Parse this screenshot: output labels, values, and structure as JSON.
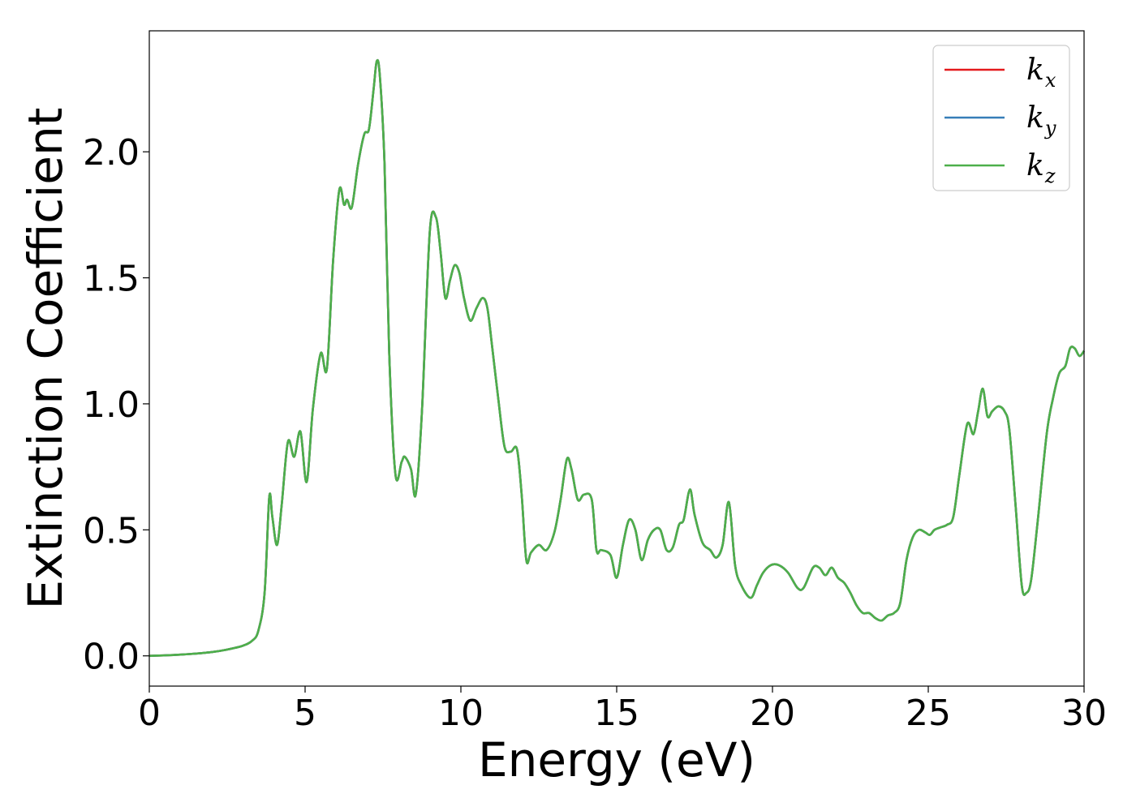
{
  "chart_data": {
    "type": "line",
    "title": "",
    "xlabel": "Energy (eV)",
    "ylabel": "Extinction Coefficient",
    "xlim": [
      0,
      30
    ],
    "ylim": [
      -0.12,
      2.48
    ],
    "xticks": [
      0,
      5,
      10,
      15,
      20,
      25,
      30
    ],
    "xtick_labels": [
      "0",
      "5",
      "10",
      "15",
      "20",
      "25",
      "30"
    ],
    "yticks": [
      0.0,
      0.5,
      1.0,
      1.5,
      2.0
    ],
    "ytick_labels": [
      "0.0",
      "0.5",
      "1.0",
      "1.5",
      "2.0"
    ],
    "grid": false,
    "legend_position": "top-right",
    "x": [
      0,
      1,
      2,
      2.5,
      3,
      3.3,
      3.5,
      3.7,
      3.85,
      3.95,
      4.1,
      4.25,
      4.45,
      4.65,
      4.85,
      5.05,
      5.25,
      5.5,
      5.7,
      5.9,
      6.1,
      6.25,
      6.35,
      6.5,
      6.7,
      6.9,
      7.05,
      7.2,
      7.3,
      7.4,
      7.55,
      7.7,
      7.9,
      8.1,
      8.2,
      8.4,
      8.55,
      8.75,
      9.0,
      9.2,
      9.35,
      9.5,
      9.65,
      9.8,
      9.95,
      10.1,
      10.3,
      10.5,
      10.7,
      10.85,
      11.0,
      11.2,
      11.4,
      11.6,
      11.8,
      11.95,
      12.1,
      12.25,
      12.5,
      12.75,
      13.0,
      13.2,
      13.4,
      13.55,
      13.75,
      13.95,
      14.2,
      14.35,
      14.5,
      14.8,
      15.0,
      15.2,
      15.4,
      15.6,
      15.8,
      16.0,
      16.2,
      16.4,
      16.6,
      16.8,
      17.0,
      17.15,
      17.35,
      17.5,
      17.75,
      18.0,
      18.2,
      18.4,
      18.6,
      18.8,
      19.0,
      19.3,
      19.5,
      19.7,
      19.95,
      20.2,
      20.5,
      20.8,
      21.0,
      21.3,
      21.5,
      21.7,
      21.9,
      22.1,
      22.3,
      22.5,
      22.7,
      22.9,
      23.1,
      23.3,
      23.5,
      23.7,
      23.9,
      24.1,
      24.3,
      24.5,
      24.7,
      24.9,
      25.05,
      25.2,
      25.4,
      25.6,
      25.8,
      26.0,
      26.25,
      26.45,
      26.6,
      26.75,
      26.9,
      27.05,
      27.25,
      27.45,
      27.6,
      27.8,
      28.0,
      28.15,
      28.3,
      28.5,
      28.8,
      29.0,
      29.2,
      29.4,
      29.55,
      29.7,
      29.85,
      30.0
    ],
    "series": [
      {
        "name": "k_x",
        "color": "#e41a1c",
        "values": [
          0.0,
          0.005,
          0.015,
          0.025,
          0.04,
          0.06,
          0.1,
          0.25,
          0.63,
          0.55,
          0.44,
          0.6,
          0.85,
          0.79,
          0.89,
          0.69,
          0.98,
          1.2,
          1.14,
          1.57,
          1.85,
          1.79,
          1.81,
          1.78,
          1.95,
          2.07,
          2.09,
          2.25,
          2.36,
          2.3,
          1.95,
          1.2,
          0.72,
          0.77,
          0.79,
          0.74,
          0.64,
          0.97,
          1.68,
          1.74,
          1.6,
          1.42,
          1.49,
          1.55,
          1.52,
          1.42,
          1.33,
          1.38,
          1.42,
          1.38,
          1.23,
          1.02,
          0.83,
          0.81,
          0.82,
          0.64,
          0.38,
          0.41,
          0.44,
          0.42,
          0.49,
          0.62,
          0.78,
          0.74,
          0.62,
          0.64,
          0.62,
          0.42,
          0.42,
          0.4,
          0.31,
          0.44,
          0.54,
          0.5,
          0.38,
          0.46,
          0.5,
          0.5,
          0.42,
          0.43,
          0.52,
          0.54,
          0.66,
          0.56,
          0.45,
          0.42,
          0.39,
          0.44,
          0.61,
          0.36,
          0.28,
          0.23,
          0.28,
          0.33,
          0.36,
          0.36,
          0.33,
          0.27,
          0.27,
          0.35,
          0.35,
          0.32,
          0.35,
          0.31,
          0.29,
          0.25,
          0.2,
          0.17,
          0.17,
          0.15,
          0.14,
          0.16,
          0.17,
          0.21,
          0.38,
          0.47,
          0.5,
          0.49,
          0.48,
          0.5,
          0.51,
          0.52,
          0.55,
          0.72,
          0.92,
          0.88,
          0.97,
          1.06,
          0.95,
          0.97,
          0.99,
          0.97,
          0.9,
          0.6,
          0.28,
          0.25,
          0.3,
          0.52,
          0.88,
          1.02,
          1.12,
          1.15,
          1.22,
          1.22,
          1.19,
          1.21
        ]
      },
      {
        "name": "k_y",
        "color": "#377eb8",
        "values": [
          0.0,
          0.005,
          0.015,
          0.025,
          0.04,
          0.06,
          0.1,
          0.25,
          0.63,
          0.55,
          0.44,
          0.6,
          0.85,
          0.79,
          0.89,
          0.69,
          0.98,
          1.2,
          1.14,
          1.57,
          1.85,
          1.79,
          1.81,
          1.78,
          1.95,
          2.07,
          2.09,
          2.25,
          2.36,
          2.3,
          1.95,
          1.2,
          0.72,
          0.77,
          0.79,
          0.74,
          0.64,
          0.97,
          1.68,
          1.74,
          1.6,
          1.42,
          1.49,
          1.55,
          1.52,
          1.42,
          1.33,
          1.38,
          1.42,
          1.38,
          1.23,
          1.02,
          0.83,
          0.81,
          0.82,
          0.64,
          0.38,
          0.41,
          0.44,
          0.42,
          0.49,
          0.62,
          0.78,
          0.74,
          0.62,
          0.64,
          0.62,
          0.42,
          0.42,
          0.4,
          0.31,
          0.44,
          0.54,
          0.5,
          0.38,
          0.46,
          0.5,
          0.5,
          0.42,
          0.43,
          0.52,
          0.54,
          0.66,
          0.56,
          0.45,
          0.42,
          0.39,
          0.44,
          0.61,
          0.36,
          0.28,
          0.23,
          0.28,
          0.33,
          0.36,
          0.36,
          0.33,
          0.27,
          0.27,
          0.35,
          0.35,
          0.32,
          0.35,
          0.31,
          0.29,
          0.25,
          0.2,
          0.17,
          0.17,
          0.15,
          0.14,
          0.16,
          0.17,
          0.21,
          0.38,
          0.47,
          0.5,
          0.49,
          0.48,
          0.5,
          0.51,
          0.52,
          0.55,
          0.72,
          0.92,
          0.88,
          0.97,
          1.06,
          0.95,
          0.97,
          0.99,
          0.97,
          0.9,
          0.6,
          0.28,
          0.25,
          0.3,
          0.52,
          0.88,
          1.02,
          1.12,
          1.15,
          1.22,
          1.22,
          1.19,
          1.21
        ]
      },
      {
        "name": "k_z",
        "color": "#4daf4a",
        "values": [
          0.0,
          0.005,
          0.015,
          0.025,
          0.04,
          0.06,
          0.1,
          0.25,
          0.63,
          0.55,
          0.44,
          0.6,
          0.85,
          0.79,
          0.89,
          0.69,
          0.98,
          1.2,
          1.14,
          1.57,
          1.85,
          1.79,
          1.81,
          1.78,
          1.95,
          2.07,
          2.09,
          2.25,
          2.36,
          2.3,
          1.95,
          1.2,
          0.72,
          0.77,
          0.79,
          0.74,
          0.64,
          0.97,
          1.68,
          1.74,
          1.6,
          1.42,
          1.49,
          1.55,
          1.52,
          1.42,
          1.33,
          1.38,
          1.42,
          1.38,
          1.23,
          1.02,
          0.83,
          0.81,
          0.82,
          0.64,
          0.38,
          0.41,
          0.44,
          0.42,
          0.49,
          0.62,
          0.78,
          0.74,
          0.62,
          0.64,
          0.62,
          0.42,
          0.42,
          0.4,
          0.31,
          0.44,
          0.54,
          0.5,
          0.38,
          0.46,
          0.5,
          0.5,
          0.42,
          0.43,
          0.52,
          0.54,
          0.66,
          0.56,
          0.45,
          0.42,
          0.39,
          0.44,
          0.61,
          0.36,
          0.28,
          0.23,
          0.28,
          0.33,
          0.36,
          0.36,
          0.33,
          0.27,
          0.27,
          0.35,
          0.35,
          0.32,
          0.35,
          0.31,
          0.29,
          0.25,
          0.2,
          0.17,
          0.17,
          0.15,
          0.14,
          0.16,
          0.17,
          0.21,
          0.38,
          0.47,
          0.5,
          0.49,
          0.48,
          0.5,
          0.51,
          0.52,
          0.55,
          0.72,
          0.92,
          0.88,
          0.97,
          1.06,
          0.95,
          0.97,
          0.99,
          0.97,
          0.9,
          0.6,
          0.28,
          0.25,
          0.3,
          0.52,
          0.88,
          1.02,
          1.12,
          1.15,
          1.22,
          1.22,
          1.19,
          1.21
        ]
      }
    ],
    "legend": [
      {
        "base": "k",
        "sub": "x",
        "color": "#e41a1c"
      },
      {
        "base": "k",
        "sub": "y",
        "color": "#377eb8"
      },
      {
        "base": "k",
        "sub": "z",
        "color": "#4daf4a"
      }
    ]
  }
}
